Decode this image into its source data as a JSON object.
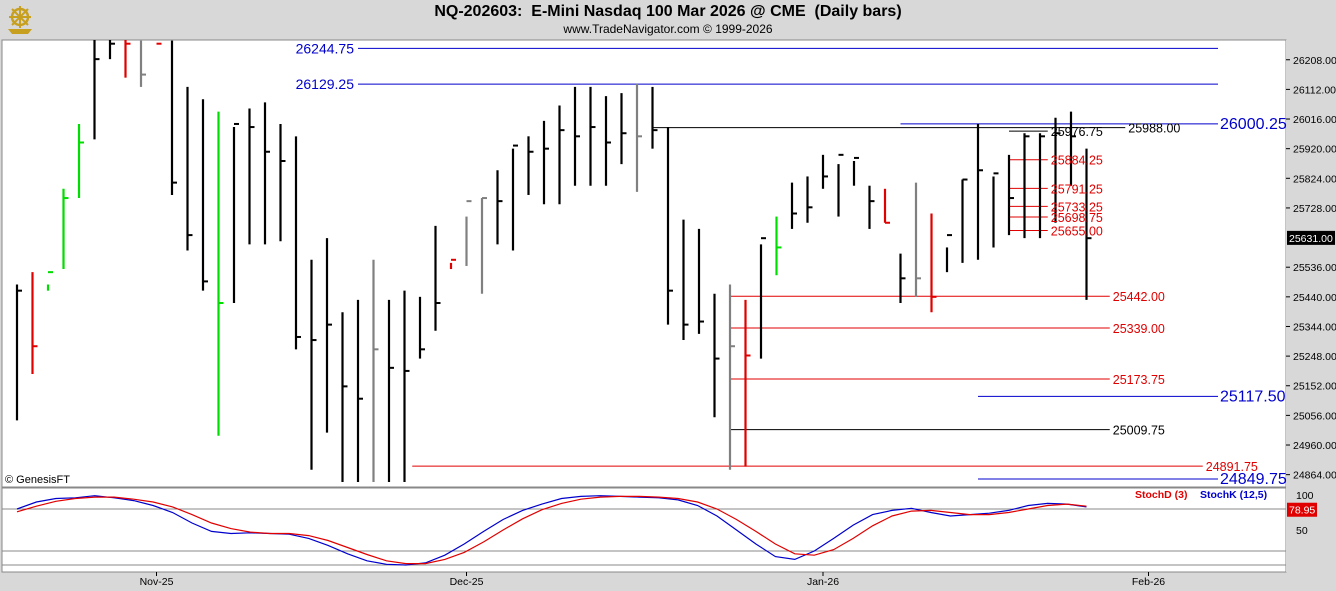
{
  "header": {
    "title": "NQ-202603:  E-Mini Nasdaq 100 Mar 2026 @ CME  (Daily bars)",
    "subtitle": "www.TradeNavigator.com © 1999-2026",
    "logo_icon": "ship-helm-icon"
  },
  "watermark": "© GenesisFT",
  "colors": {
    "up": "#00dd00",
    "down": "#e00000",
    "bar": "#000000",
    "gray": "#808080",
    "blue": "#0000cc",
    "red": "#e00000",
    "stochD": "#e00000",
    "stochK": "#0000cc"
  },
  "chart_data": [
    {
      "type": "ohlc",
      "price_axis": {
        "ticks": [
          26208,
          26112,
          26016,
          25920,
          25824,
          25728,
          25536,
          25440,
          25344,
          25248,
          25152,
          25056,
          24960,
          24864
        ],
        "tick_labels": [
          "26208.00",
          "26112.00",
          "26016.00",
          "25920.00",
          "25824.00",
          "25728.00",
          "25536.00",
          "25440.00",
          "25344.00",
          "25248.00",
          "25152.00",
          "25056.00",
          "24960.00",
          "24864.00"
        ],
        "ylim": [
          24824,
          26272
        ]
      },
      "last_price": {
        "value": 25631,
        "label": "25631.00"
      },
      "x_labels": [
        {
          "i": 9,
          "label": "Nov-25"
        },
        {
          "i": 29,
          "label": "Dec-25"
        },
        {
          "i": 52,
          "label": "Jan-26"
        },
        {
          "i": 73,
          "label": "Feb-26"
        }
      ],
      "bars": [
        [
          25480,
          25040,
          25460,
          "k"
        ],
        [
          25520,
          25190,
          25280,
          "r"
        ],
        [
          25480,
          25460,
          25520,
          "g"
        ],
        [
          25790,
          25530,
          25760,
          "g"
        ],
        [
          26000,
          25760,
          25940,
          "g"
        ],
        [
          26280,
          25950,
          26210,
          "k"
        ],
        [
          26280,
          26210,
          26260,
          "k"
        ],
        [
          26280,
          26150,
          26260,
          "r"
        ],
        [
          26270,
          26120,
          26160,
          "h"
        ],
        [
          26270,
          26270,
          26260,
          "r"
        ],
        [
          26270,
          25770,
          25810,
          "k"
        ],
        [
          26120,
          25590,
          25640,
          "k"
        ],
        [
          26080,
          25460,
          25490,
          "k"
        ],
        [
          26040,
          24990,
          25420,
          "g"
        ],
        [
          25990,
          25420,
          26000,
          "k"
        ],
        [
          26050,
          25610,
          25990,
          "k"
        ],
        [
          26070,
          25610,
          25910,
          "k"
        ],
        [
          26000,
          25620,
          25880,
          "k"
        ],
        [
          25960,
          25270,
          25310,
          "k"
        ],
        [
          25560,
          24880,
          25300,
          "k"
        ],
        [
          25630,
          25000,
          25350,
          "k"
        ],
        [
          25390,
          24840,
          25150,
          "k"
        ],
        [
          25430,
          24840,
          25110,
          "k"
        ],
        [
          25560,
          24840,
          25270,
          "h"
        ],
        [
          25430,
          24840,
          25210,
          "k"
        ],
        [
          25460,
          24840,
          25200,
          "k"
        ],
        [
          25440,
          25240,
          25270,
          "k"
        ],
        [
          25670,
          25330,
          25420,
          "k"
        ],
        [
          25550,
          25530,
          25560,
          "r"
        ],
        [
          25700,
          25540,
          25750,
          "h"
        ],
        [
          25760,
          25450,
          25760,
          "h"
        ],
        [
          25850,
          25610,
          25750,
          "k"
        ],
        [
          25920,
          25590,
          25930,
          "k"
        ],
        [
          25960,
          25770,
          25910,
          "k"
        ],
        [
          26010,
          25740,
          25920,
          "k"
        ],
        [
          26060,
          25740,
          25980,
          "k"
        ],
        [
          26120,
          25800,
          25960,
          "k"
        ],
        [
          26120,
          25800,
          25990,
          "k"
        ],
        [
          26090,
          25800,
          25940,
          "k"
        ],
        [
          26100,
          25870,
          25970,
          "k"
        ],
        [
          26130,
          25780,
          25960,
          "h"
        ],
        [
          26120,
          25920,
          25980,
          "k"
        ],
        [
          25990,
          25350,
          25460,
          "k"
        ],
        [
          25690,
          25300,
          25350,
          "k"
        ],
        [
          25660,
          25320,
          25360,
          "k"
        ],
        [
          25450,
          25050,
          25240,
          "k"
        ],
        [
          25480,
          24880,
          25280,
          "h"
        ],
        [
          25430,
          24890,
          25250,
          "r"
        ],
        [
          25610,
          25240,
          25630,
          "k"
        ],
        [
          25700,
          25510,
          25600,
          "g"
        ],
        [
          25810,
          25660,
          25710,
          "k"
        ],
        [
          25830,
          25680,
          25730,
          "k"
        ],
        [
          25900,
          25790,
          25830,
          "k"
        ],
        [
          25870,
          25700,
          25900,
          "k"
        ],
        [
          25880,
          25800,
          25890,
          "k"
        ],
        [
          25800,
          25660,
          25750,
          "k"
        ],
        [
          25790,
          25680,
          25680,
          "r"
        ],
        [
          25580,
          25420,
          25500,
          "k"
        ],
        [
          25810,
          25440,
          25500,
          "h"
        ],
        [
          25710,
          25390,
          25440,
          "r"
        ],
        [
          25600,
          25520,
          25640,
          "k"
        ],
        [
          25820,
          25550,
          25820,
          "k"
        ],
        [
          26000,
          25560,
          25850,
          "k"
        ],
        [
          25830,
          25600,
          25840,
          "k"
        ],
        [
          25900,
          25640,
          25760,
          "k"
        ],
        [
          25970,
          25630,
          25960,
          "k"
        ],
        [
          25970,
          25630,
          25960,
          "k"
        ],
        [
          26020,
          25680,
          25970,
          "k"
        ],
        [
          26040,
          25800,
          25960,
          "k"
        ],
        [
          25920,
          25430,
          25630,
          "k"
        ]
      ],
      "levels": [
        {
          "value": 26244.75,
          "label": "26244.75",
          "color": "blue",
          "from": 22,
          "to": 80,
          "label_side": "left"
        },
        {
          "value": 26129.25,
          "label": "26129.25",
          "color": "blue",
          "from": 22,
          "to": 80,
          "label_side": "left"
        },
        {
          "value": 26000.25,
          "label": "26000.25",
          "color": "blue",
          "from": 57,
          "to": 80,
          "label_side": "right"
        },
        {
          "value": 25988.0,
          "label": "25988.00",
          "color": "black",
          "from": 41,
          "to": 71.5,
          "label_side": "end"
        },
        {
          "value": 25976.75,
          "label": "25976.75",
          "color": "black",
          "from": 64,
          "to": 66.5,
          "label_side": "end"
        },
        {
          "value": 25884.25,
          "label": "25884.25",
          "color": "red",
          "from": 64,
          "to": 66.5,
          "label_side": "end"
        },
        {
          "value": 25791.25,
          "label": "25791.25",
          "color": "red",
          "from": 64,
          "to": 66.5,
          "label_side": "end"
        },
        {
          "value": 25733.25,
          "label": "25733.25",
          "color": "red",
          "from": 64,
          "to": 66.5,
          "label_side": "end"
        },
        {
          "value": 25698.75,
          "label": "25698.75",
          "color": "red",
          "from": 64,
          "to": 66.5,
          "label_side": "end"
        },
        {
          "value": 25655.0,
          "label": "25655.00",
          "color": "red",
          "from": 64,
          "to": 66.5,
          "label_side": "end"
        },
        {
          "value": 25442.0,
          "label": "25442.00",
          "color": "red",
          "from": 46,
          "to": 70.5,
          "label_side": "end"
        },
        {
          "value": 25339.0,
          "label": "25339.00",
          "color": "red",
          "from": 46,
          "to": 70.5,
          "label_side": "end"
        },
        {
          "value": 25173.75,
          "label": "25173.75",
          "color": "red",
          "from": 46,
          "to": 70.5,
          "label_side": "end"
        },
        {
          "value": 25117.5,
          "label": "25117.50",
          "color": "blue",
          "from": 62,
          "to": 80,
          "label_side": "right"
        },
        {
          "value": 25009.75,
          "label": "25009.75",
          "color": "black",
          "from": 46,
          "to": 70.5,
          "label_side": "end"
        },
        {
          "value": 24891.75,
          "label": "24891.75",
          "color": "red",
          "from": 25.5,
          "to": 76.5,
          "label_side": "end"
        },
        {
          "value": 24849.75,
          "label": "24849.75",
          "color": "blue",
          "from": 62,
          "to": 80,
          "label_side": "right"
        }
      ]
    },
    {
      "type": "line",
      "name": "stochastic",
      "ylim": [
        -10,
        110
      ],
      "ticks": [
        100,
        50
      ],
      "tick_labels": [
        "100",
        "50"
      ],
      "reference_lines": [
        80,
        20,
        0
      ],
      "legend": [
        {
          "name": "StochD (3)",
          "color": "stochD"
        },
        {
          "name": "StochK (12,5)",
          "color": "stochK"
        }
      ],
      "last_value": {
        "value": 78.95,
        "label": "78.95"
      },
      "series": [
        {
          "name": "StochK (12,5)",
          "color": "stochK",
          "values": [
            80,
            90,
            95,
            96,
            99,
            96,
            92,
            85,
            75,
            60,
            48,
            45,
            46,
            45,
            44,
            38,
            28,
            16,
            6,
            1,
            0,
            3,
            14,
            30,
            48,
            65,
            78,
            87,
            95,
            98,
            99,
            98,
            97,
            96,
            93,
            85,
            70,
            50,
            30,
            12,
            8,
            20,
            38,
            57,
            72,
            78,
            81,
            75,
            70,
            72,
            74,
            78,
            85,
            88,
            87,
            83
          ]
        },
        {
          "name": "StochD (3)",
          "color": "stochD",
          "values": [
            76,
            84,
            91,
            95,
            97,
            97,
            94,
            90,
            83,
            72,
            60,
            52,
            47,
            45,
            45,
            42,
            35,
            25,
            15,
            6,
            2,
            2,
            8,
            18,
            33,
            50,
            66,
            79,
            88,
            94,
            97,
            98,
            98,
            97,
            95,
            90,
            80,
            65,
            48,
            30,
            16,
            14,
            22,
            38,
            56,
            70,
            77,
            78,
            75,
            72,
            72,
            75,
            80,
            85,
            87,
            84
          ]
        }
      ]
    }
  ]
}
